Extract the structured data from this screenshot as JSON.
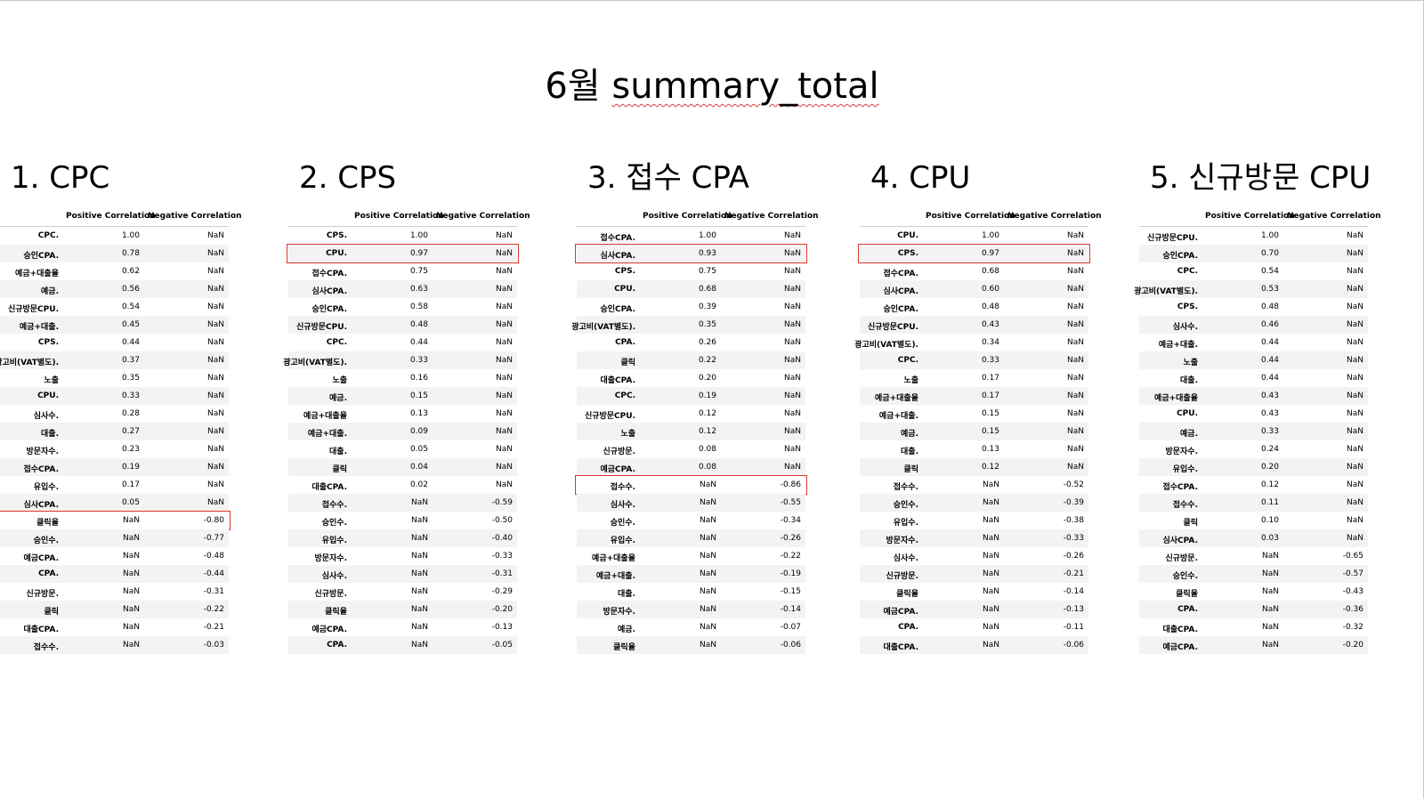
{
  "page": {
    "title_prefix": "6월 ",
    "title_main": "summary_total"
  },
  "table_headers": {
    "positive": "Positive Correlation",
    "negative": "Negative Correlation"
  },
  "sections": [
    {
      "title": "1. CPC",
      "rows": [
        {
          "label": "CPC.",
          "pos": "1.00",
          "neg": "NaN"
        },
        {
          "label": "승인CPA.",
          "pos": "0.78",
          "neg": "NaN"
        },
        {
          "label": "예금+대출율",
          "pos": "0.62",
          "neg": "NaN"
        },
        {
          "label": "예금.",
          "pos": "0.56",
          "neg": "NaN"
        },
        {
          "label": "신규방문CPU.",
          "pos": "0.54",
          "neg": "NaN"
        },
        {
          "label": "예금+대출.",
          "pos": "0.45",
          "neg": "NaN"
        },
        {
          "label": "CPS.",
          "pos": "0.44",
          "neg": "NaN"
        },
        {
          "label": "광고비(VAT별도).",
          "pos": "0.37",
          "neg": "NaN"
        },
        {
          "label": "노출",
          "pos": "0.35",
          "neg": "NaN"
        },
        {
          "label": "CPU.",
          "pos": "0.33",
          "neg": "NaN"
        },
        {
          "label": "심사수.",
          "pos": "0.28",
          "neg": "NaN"
        },
        {
          "label": "대출.",
          "pos": "0.27",
          "neg": "NaN"
        },
        {
          "label": "방문자수.",
          "pos": "0.23",
          "neg": "NaN"
        },
        {
          "label": "접수CPA.",
          "pos": "0.19",
          "neg": "NaN"
        },
        {
          "label": "유입수.",
          "pos": "0.17",
          "neg": "NaN"
        },
        {
          "label": "심사CPA.",
          "pos": "0.05",
          "neg": "NaN"
        },
        {
          "label": "클릭율",
          "pos": "NaN",
          "neg": "-0.80",
          "highlight": true
        },
        {
          "label": "승인수.",
          "pos": "NaN",
          "neg": "-0.77"
        },
        {
          "label": "예금CPA.",
          "pos": "NaN",
          "neg": "-0.48"
        },
        {
          "label": "CPA.",
          "pos": "NaN",
          "neg": "-0.44"
        },
        {
          "label": "신규방문.",
          "pos": "NaN",
          "neg": "-0.31"
        },
        {
          "label": "클릭",
          "pos": "NaN",
          "neg": "-0.22"
        },
        {
          "label": "대출CPA.",
          "pos": "NaN",
          "neg": "-0.21"
        },
        {
          "label": "접수수.",
          "pos": "NaN",
          "neg": "-0.03"
        }
      ]
    },
    {
      "title": "2. CPS",
      "rows": [
        {
          "label": "CPS.",
          "pos": "1.00",
          "neg": "NaN"
        },
        {
          "label": "CPU.",
          "pos": "0.97",
          "neg": "NaN",
          "highlight": true
        },
        {
          "label": "접수CPA.",
          "pos": "0.75",
          "neg": "NaN"
        },
        {
          "label": "심사CPA.",
          "pos": "0.63",
          "neg": "NaN"
        },
        {
          "label": "승인CPA.",
          "pos": "0.58",
          "neg": "NaN"
        },
        {
          "label": "신규방문CPU.",
          "pos": "0.48",
          "neg": "NaN"
        },
        {
          "label": "CPC.",
          "pos": "0.44",
          "neg": "NaN"
        },
        {
          "label": "광고비(VAT별도).",
          "pos": "0.33",
          "neg": "NaN"
        },
        {
          "label": "노출",
          "pos": "0.16",
          "neg": "NaN"
        },
        {
          "label": "예금.",
          "pos": "0.15",
          "neg": "NaN"
        },
        {
          "label": "예금+대출율",
          "pos": "0.13",
          "neg": "NaN"
        },
        {
          "label": "예금+대출.",
          "pos": "0.09",
          "neg": "NaN"
        },
        {
          "label": "대출.",
          "pos": "0.05",
          "neg": "NaN"
        },
        {
          "label": "클릭",
          "pos": "0.04",
          "neg": "NaN"
        },
        {
          "label": "대출CPA.",
          "pos": "0.02",
          "neg": "NaN"
        },
        {
          "label": "접수수.",
          "pos": "NaN",
          "neg": "-0.59"
        },
        {
          "label": "승인수.",
          "pos": "NaN",
          "neg": "-0.50"
        },
        {
          "label": "유입수.",
          "pos": "NaN",
          "neg": "-0.40"
        },
        {
          "label": "방문자수.",
          "pos": "NaN",
          "neg": "-0.33"
        },
        {
          "label": "심사수.",
          "pos": "NaN",
          "neg": "-0.31"
        },
        {
          "label": "신규방문.",
          "pos": "NaN",
          "neg": "-0.29"
        },
        {
          "label": "클릭율",
          "pos": "NaN",
          "neg": "-0.20"
        },
        {
          "label": "예금CPA.",
          "pos": "NaN",
          "neg": "-0.13"
        },
        {
          "label": "CPA.",
          "pos": "NaN",
          "neg": "-0.05"
        }
      ]
    },
    {
      "title": "3. 접수 CPA",
      "rows": [
        {
          "label": "접수CPA.",
          "pos": "1.00",
          "neg": "NaN"
        },
        {
          "label": "심사CPA.",
          "pos": "0.93",
          "neg": "NaN",
          "highlight": true
        },
        {
          "label": "CPS.",
          "pos": "0.75",
          "neg": "NaN"
        },
        {
          "label": "CPU.",
          "pos": "0.68",
          "neg": "NaN"
        },
        {
          "label": "승인CPA.",
          "pos": "0.39",
          "neg": "NaN"
        },
        {
          "label": "광고비(VAT별도).",
          "pos": "0.35",
          "neg": "NaN"
        },
        {
          "label": "CPA.",
          "pos": "0.26",
          "neg": "NaN"
        },
        {
          "label": "클릭",
          "pos": "0.22",
          "neg": "NaN"
        },
        {
          "label": "대출CPA.",
          "pos": "0.20",
          "neg": "NaN"
        },
        {
          "label": "CPC.",
          "pos": "0.19",
          "neg": "NaN"
        },
        {
          "label": "신규방문CPU.",
          "pos": "0.12",
          "neg": "NaN"
        },
        {
          "label": "노출",
          "pos": "0.12",
          "neg": "NaN"
        },
        {
          "label": "신규방문.",
          "pos": "0.08",
          "neg": "NaN"
        },
        {
          "label": "예금CPA.",
          "pos": "0.08",
          "neg": "NaN"
        },
        {
          "label": "접수수.",
          "pos": "NaN",
          "neg": "-0.86",
          "highlight": true
        },
        {
          "label": "심사수.",
          "pos": "NaN",
          "neg": "-0.55"
        },
        {
          "label": "승인수.",
          "pos": "NaN",
          "neg": "-0.34"
        },
        {
          "label": "유입수.",
          "pos": "NaN",
          "neg": "-0.26"
        },
        {
          "label": "예금+대출율",
          "pos": "NaN",
          "neg": "-0.22"
        },
        {
          "label": "예금+대출.",
          "pos": "NaN",
          "neg": "-0.19"
        },
        {
          "label": "대출.",
          "pos": "NaN",
          "neg": "-0.15"
        },
        {
          "label": "방문자수.",
          "pos": "NaN",
          "neg": "-0.14"
        },
        {
          "label": "예금.",
          "pos": "NaN",
          "neg": "-0.07"
        },
        {
          "label": "클릭율",
          "pos": "NaN",
          "neg": "-0.06"
        }
      ]
    },
    {
      "title": "4. CPU",
      "rows": [
        {
          "label": "CPU.",
          "pos": "1.00",
          "neg": "NaN"
        },
        {
          "label": "CPS.",
          "pos": "0.97",
          "neg": "NaN",
          "highlight": true
        },
        {
          "label": "접수CPA.",
          "pos": "0.68",
          "neg": "NaN"
        },
        {
          "label": "심사CPA.",
          "pos": "0.60",
          "neg": "NaN"
        },
        {
          "label": "승인CPA.",
          "pos": "0.48",
          "neg": "NaN"
        },
        {
          "label": "신규방문CPU.",
          "pos": "0.43",
          "neg": "NaN"
        },
        {
          "label": "광고비(VAT별도).",
          "pos": "0.34",
          "neg": "NaN"
        },
        {
          "label": "CPC.",
          "pos": "0.33",
          "neg": "NaN"
        },
        {
          "label": "노출",
          "pos": "0.17",
          "neg": "NaN"
        },
        {
          "label": "예금+대출율",
          "pos": "0.17",
          "neg": "NaN"
        },
        {
          "label": "예금+대출.",
          "pos": "0.15",
          "neg": "NaN"
        },
        {
          "label": "예금.",
          "pos": "0.15",
          "neg": "NaN"
        },
        {
          "label": "대출.",
          "pos": "0.13",
          "neg": "NaN"
        },
        {
          "label": "클릭",
          "pos": "0.12",
          "neg": "NaN"
        },
        {
          "label": "접수수.",
          "pos": "NaN",
          "neg": "-0.52"
        },
        {
          "label": "승인수.",
          "pos": "NaN",
          "neg": "-0.39"
        },
        {
          "label": "유입수.",
          "pos": "NaN",
          "neg": "-0.38"
        },
        {
          "label": "방문자수.",
          "pos": "NaN",
          "neg": "-0.33"
        },
        {
          "label": "심사수.",
          "pos": "NaN",
          "neg": "-0.26"
        },
        {
          "label": "신규방문.",
          "pos": "NaN",
          "neg": "-0.21"
        },
        {
          "label": "클릭율",
          "pos": "NaN",
          "neg": "-0.14"
        },
        {
          "label": "예금CPA.",
          "pos": "NaN",
          "neg": "-0.13"
        },
        {
          "label": "CPA.",
          "pos": "NaN",
          "neg": "-0.11"
        },
        {
          "label": "대출CPA.",
          "pos": "NaN",
          "neg": "-0.06"
        }
      ]
    },
    {
      "title": "5. 신규방문 CPU",
      "rows": [
        {
          "label": "신규방문CPU.",
          "pos": "1.00",
          "neg": "NaN"
        },
        {
          "label": "승인CPA.",
          "pos": "0.70",
          "neg": "NaN"
        },
        {
          "label": "CPC.",
          "pos": "0.54",
          "neg": "NaN"
        },
        {
          "label": "광고비(VAT별도).",
          "pos": "0.53",
          "neg": "NaN"
        },
        {
          "label": "CPS.",
          "pos": "0.48",
          "neg": "NaN"
        },
        {
          "label": "심사수.",
          "pos": "0.46",
          "neg": "NaN"
        },
        {
          "label": "예금+대출.",
          "pos": "0.44",
          "neg": "NaN"
        },
        {
          "label": "노출",
          "pos": "0.44",
          "neg": "NaN"
        },
        {
          "label": "대출.",
          "pos": "0.44",
          "neg": "NaN"
        },
        {
          "label": "예금+대출율",
          "pos": "0.43",
          "neg": "NaN"
        },
        {
          "label": "CPU.",
          "pos": "0.43",
          "neg": "NaN"
        },
        {
          "label": "예금.",
          "pos": "0.33",
          "neg": "NaN"
        },
        {
          "label": "방문자수.",
          "pos": "0.24",
          "neg": "NaN"
        },
        {
          "label": "유입수.",
          "pos": "0.20",
          "neg": "NaN"
        },
        {
          "label": "접수CPA.",
          "pos": "0.12",
          "neg": "NaN"
        },
        {
          "label": "접수수.",
          "pos": "0.11",
          "neg": "NaN"
        },
        {
          "label": "클릭",
          "pos": "0.10",
          "neg": "NaN"
        },
        {
          "label": "심사CPA.",
          "pos": "0.03",
          "neg": "NaN"
        },
        {
          "label": "신규방문.",
          "pos": "NaN",
          "neg": "-0.65"
        },
        {
          "label": "승인수.",
          "pos": "NaN",
          "neg": "-0.57"
        },
        {
          "label": "클릭율",
          "pos": "NaN",
          "neg": "-0.43"
        },
        {
          "label": "CPA.",
          "pos": "NaN",
          "neg": "-0.36"
        },
        {
          "label": "대출CPA.",
          "pos": "NaN",
          "neg": "-0.32"
        },
        {
          "label": "예금CPA.",
          "pos": "NaN",
          "neg": "-0.20"
        }
      ]
    }
  ]
}
